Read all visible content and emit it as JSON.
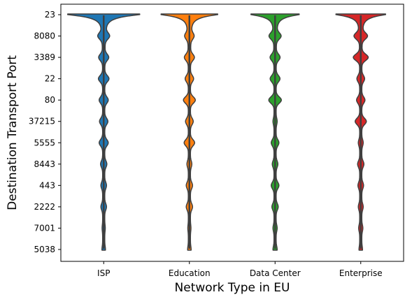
{
  "chart_data": {
    "type": "violin",
    "xlabel": "Network Type in EU",
    "ylabel": "Destination Transport Port",
    "categories": [
      "ISP",
      "Education",
      "Data Center",
      "Enterprise"
    ],
    "ports": [
      "23",
      "8080",
      "3389",
      "22",
      "80",
      "37215",
      "5555",
      "8443",
      "443",
      "2222",
      "7001",
      "5038"
    ],
    "colors": [
      "#1f77b4",
      "#ff7f0e",
      "#2ca02c",
      "#d62728"
    ],
    "series": [
      {
        "name": "ISP",
        "density": [
          1.0,
          0.12,
          0.11,
          0.12,
          0.1,
          0.09,
          0.1,
          0.06,
          0.05,
          0.05,
          0.015,
          0.02
        ]
      },
      {
        "name": "Education",
        "density": [
          0.78,
          0.09,
          0.11,
          0.09,
          0.14,
          0.08,
          0.12,
          0.04,
          0.06,
          0.06,
          0.015,
          0.02
        ]
      },
      {
        "name": "Data Center",
        "density": [
          0.66,
          0.13,
          0.11,
          0.11,
          0.15,
          0.03,
          0.08,
          0.05,
          0.08,
          0.06,
          0.03,
          0.03
        ]
      },
      {
        "name": "Enterprise",
        "density": [
          0.68,
          0.15,
          0.18,
          0.08,
          0.09,
          0.13,
          0.04,
          0.06,
          0.05,
          0.04,
          0.03,
          0.02
        ]
      }
    ]
  }
}
